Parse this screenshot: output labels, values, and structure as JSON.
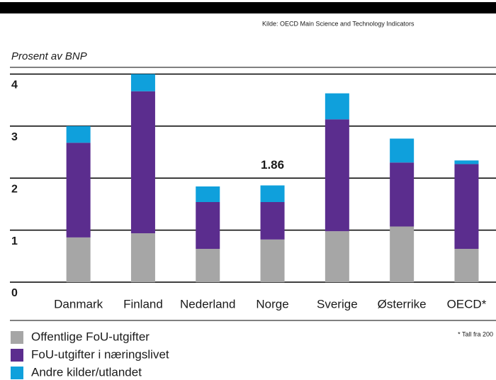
{
  "chart_data": {
    "type": "stacked_bar",
    "source": "Kilde: OECD Main Science and Technology Indicators",
    "y_label": "Prosent av BNP",
    "footnote": "* Tall fra 200",
    "annotation": "1.86",
    "categories": [
      "Danmark",
      "Finland",
      "Nederland",
      "Norge",
      "Sverige",
      "Østerrike",
      "OECD*"
    ],
    "series": [
      {
        "name": "Offentlige FoU-utgifter",
        "color": "#a6a6a6",
        "values": [
          0.86,
          0.94,
          0.64,
          0.82,
          0.98,
          1.07,
          0.64
        ]
      },
      {
        "name": "FoU-utgifter i næringslivet",
        "color": "#5b2d8e",
        "values": [
          1.82,
          2.73,
          0.9,
          0.72,
          2.15,
          1.23,
          1.63
        ]
      },
      {
        "name": "Andre kilder/utlandet",
        "color": "#0fa0dc",
        "values": [
          0.32,
          0.33,
          0.3,
          0.32,
          0.5,
          0.46,
          0.07
        ]
      }
    ],
    "ylim": [
      0,
      4
    ],
    "yticks": [
      0,
      1,
      2,
      3,
      4
    ],
    "grid": true
  }
}
